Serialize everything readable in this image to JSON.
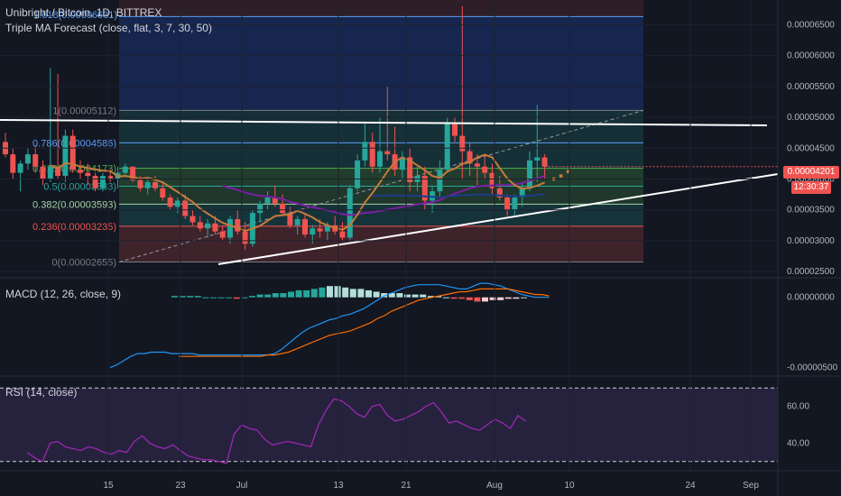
{
  "header": {
    "symbol": "Unibright / Bitcoin, 1D, BITTREX",
    "indicator": "Triple MA Forecast (close, flat, 3, 7, 30, 50)"
  },
  "panes": {
    "macd_title": "MACD (12, 26, close, 9)",
    "rsi_title": "RSI (14, close)"
  },
  "price_tags": {
    "last_price": "0.00004201",
    "countdown": "12:30:37"
  },
  "colors": {
    "background": "#131722",
    "up": "#26a69a",
    "down": "#ef5350",
    "price_line": "#ef5350",
    "trendline": "#ffffff"
  },
  "chart_data": [
    {
      "type": "candlestick",
      "title": "Unibright / Bitcoin, 1D, BITTREX",
      "x_ticks": [
        "15",
        "23",
        "Jul",
        "13",
        "21",
        "Aug",
        "10",
        "24",
        "Sep"
      ],
      "y_ticks": [
        "0.00006500",
        "0.00006000",
        "0.00005500",
        "0.00005000",
        "0.00004500",
        "0.00004000",
        "0.00003500",
        "0.00003000",
        "0.00002500"
      ],
      "ylim": [
        2.4e-05,
        6.9e-05
      ],
      "fib_levels": [
        {
          "label": "1(0.00005112)",
          "value": 5.112e-05
        },
        {
          "label": "0.786(0.00004586)",
          "value": 4.586e-05
        },
        {
          "label": "0.618(0.00004173)",
          "value": 4.173e-05
        },
        {
          "label": "0.5(0.00003883)",
          "value": 3.883e-05
        },
        {
          "label": "0.382(0.00003593)",
          "value": 3.593e-05
        },
        {
          "label": "0.236(0.00003235)",
          "value": 3.235e-05
        },
        {
          "label": "0(0.00002655)",
          "value": 2.655e-05
        }
      ],
      "fib_partial_label": "1.618(0.00006631)",
      "last_price": 4.201e-05,
      "candles": [
        [
          4.6e-05,
          4.75e-05,
          4.35e-05,
          4.4e-05
        ],
        [
          4.4e-05,
          4.5e-05,
          4e-05,
          4.1e-05
        ],
        [
          4.1e-05,
          4.3e-05,
          3.8e-05,
          4.25e-05
        ],
        [
          4.25e-05,
          4.5e-05,
          4.15e-05,
          4.4e-05
        ],
        [
          4.4e-05,
          4.55e-05,
          4.1e-05,
          4.2e-05
        ],
        [
          4.2e-05,
          4.3e-05,
          3.9e-05,
          4e-05
        ],
        [
          4e-05,
          5.8e-05,
          3.95e-05,
          4.2e-05
        ],
        [
          4.2e-05,
          5.7e-05,
          4e-05,
          4.05e-05
        ],
        [
          4.05e-05,
          4.8e-05,
          3.95e-05,
          4.7e-05
        ],
        [
          4.7e-05,
          4.8e-05,
          4.1e-05,
          4.15e-05
        ],
        [
          4.15e-05,
          4.3e-05,
          4e-05,
          4.1e-05
        ],
        [
          4.1e-05,
          4.25e-05,
          3.9e-05,
          4.05e-05
        ],
        [
          4.05e-05,
          4.1e-05,
          3.8e-05,
          3.85e-05
        ],
        [
          3.85e-05,
          4.1e-05,
          3.8e-05,
          4.05e-05
        ],
        [
          4.05e-05,
          4.15e-05,
          3.95e-05,
          4e-05
        ],
        [
          4e-05,
          4.2e-05,
          3.85e-05,
          4.1e-05
        ],
        [
          4.1e-05,
          4.25e-05,
          4.05e-05,
          4.2e-05
        ],
        [
          4.2e-05,
          4.2e-05,
          3.95e-05,
          3.98e-05
        ],
        [
          3.98e-05,
          4.05e-05,
          3.8e-05,
          3.85e-05
        ],
        [
          3.85e-05,
          4e-05,
          3.75e-05,
          3.95e-05
        ],
        [
          3.95e-05,
          4.05e-05,
          3.8e-05,
          3.85e-05
        ],
        [
          3.85e-05,
          3.95e-05,
          3.65e-05,
          3.7e-05
        ],
        [
          3.7e-05,
          3.75e-05,
          3.5e-05,
          3.55e-05
        ],
        [
          3.55e-05,
          3.7e-05,
          3.45e-05,
          3.65e-05
        ],
        [
          3.65e-05,
          3.75e-05,
          3.35e-05,
          3.4e-05
        ],
        [
          3.4e-05,
          3.5e-05,
          3.25e-05,
          3.3e-05
        ],
        [
          3.3e-05,
          3.4e-05,
          3.15e-05,
          3.2e-05
        ],
        [
          3.2e-05,
          3.35e-05,
          3.05e-05,
          3.28e-05
        ],
        [
          3.28e-05,
          3.4e-05,
          3.1e-05,
          3.15e-05
        ],
        [
          3.15e-05,
          3.25e-05,
          3e-05,
          3.05e-05
        ],
        [
          3.05e-05,
          3.4e-05,
          2.95e-05,
          3.35e-05
        ],
        [
          3.35e-05,
          3.5e-05,
          3.1e-05,
          3.15e-05
        ],
        [
          3.15e-05,
          3.3e-05,
          2.85e-05,
          2.95e-05
        ],
        [
          2.95e-05,
          3.5e-05,
          2.9e-05,
          3.45e-05
        ],
        [
          3.45e-05,
          3.65e-05,
          3.3e-05,
          3.6e-05
        ],
        [
          3.6e-05,
          3.8e-05,
          3.5e-05,
          3.7e-05
        ],
        [
          3.7e-05,
          3.9e-05,
          3.55e-05,
          3.6e-05
        ],
        [
          3.6e-05,
          3.75e-05,
          3.4e-05,
          3.45e-05
        ],
        [
          3.45e-05,
          3.55e-05,
          3.2e-05,
          3.25e-05
        ],
        [
          3.25e-05,
          3.4e-05,
          3.1e-05,
          3.35e-05
        ],
        [
          3.35e-05,
          3.45e-05,
          3.05e-05,
          3.1e-05
        ],
        [
          3.1e-05,
          3.25e-05,
          2.95e-05,
          3.2e-05
        ],
        [
          3.2e-05,
          3.35e-05,
          3.05e-05,
          3.15e-05
        ],
        [
          3.15e-05,
          3.3e-05,
          3e-05,
          3.25e-05
        ],
        [
          3.25e-05,
          3.4e-05,
          3.1e-05,
          3.15e-05
        ],
        [
          3.15e-05,
          3.3e-05,
          3e-05,
          3.05e-05
        ],
        [
          3.05e-05,
          3.9e-05,
          3e-05,
          3.85e-05
        ],
        [
          3.85e-05,
          4.4e-05,
          3.8e-05,
          4.3e-05
        ],
        [
          4.3e-05,
          4.9e-05,
          4.2e-05,
          4.6e-05
        ],
        [
          4.6e-05,
          4.75e-05,
          4.1e-05,
          4.2e-05
        ],
        [
          4.2e-05,
          5e-05,
          4.1e-05,
          4.45e-05
        ],
        [
          4.45e-05,
          5.5e-05,
          4.3e-05,
          4.4e-05
        ],
        [
          4.4e-05,
          4.85e-05,
          4.05e-05,
          4.15e-05
        ],
        [
          4.15e-05,
          4.45e-05,
          4e-05,
          4.35e-05
        ],
        [
          4.35e-05,
          4.5e-05,
          3.8e-05,
          3.95e-05
        ],
        [
          3.95e-05,
          4.2e-05,
          3.8e-05,
          4.05e-05
        ],
        [
          4.05e-05,
          4.2e-05,
          3.5e-05,
          3.65e-05
        ],
        [
          3.65e-05,
          3.9e-05,
          3.45e-05,
          3.8e-05
        ],
        [
          3.8e-05,
          4.3e-05,
          3.7e-05,
          4.15e-05
        ],
        [
          4.15e-05,
          5e-05,
          4.1e-05,
          4.9e-05
        ],
        [
          4.9e-05,
          5e-05,
          4.6e-05,
          4.7e-05
        ],
        [
          4.7e-05,
          6.8e-05,
          4e-05,
          4.45e-05
        ],
        [
          4.45e-05,
          4.6e-05,
          4.05e-05,
          4.25e-05
        ],
        [
          4.25e-05,
          4.4e-05,
          3.9e-05,
          4.2e-05
        ],
        [
          4.2e-05,
          4.4e-05,
          4e-05,
          4.1e-05
        ],
        [
          4.1e-05,
          4.25e-05,
          3.75e-05,
          3.85e-05
        ],
        [
          3.85e-05,
          4.05e-05,
          3.65e-05,
          3.7e-05
        ],
        [
          3.7e-05,
          3.75e-05,
          3.4e-05,
          3.5e-05
        ],
        [
          3.5e-05,
          3.75e-05,
          3.4e-05,
          3.7e-05
        ],
        [
          3.7e-05,
          3.95e-05,
          3.55e-05,
          3.85e-05
        ],
        [
          3.85e-05,
          4.45e-05,
          3.8e-05,
          4.3e-05
        ],
        [
          4.3e-05,
          5.2e-05,
          3.95e-05,
          4.35e-05
        ],
        [
          4.35e-05,
          4.4e-05,
          4e-05,
          4.201e-05
        ]
      ],
      "projected_points": [
        4e-05,
        4.05e-05,
        4.12e-05
      ]
    },
    {
      "type": "line",
      "title": "MACD (12, 26, close, 9)",
      "y_ticks": [
        "0.00000000",
        "-0.00000500"
      ],
      "ylim": [
        -5.6e-06,
        1.2e-06
      ],
      "macd": [
        -5e-06,
        -4.8e-06,
        -4.5e-06,
        -4.2e-06,
        -4e-06,
        -4e-06,
        -3.9e-06,
        -3.9e-06,
        -3.9e-06,
        -4e-06,
        -4e-06,
        -4e-06,
        -4e-06,
        -4.1e-06,
        -4.1e-06,
        -4.1e-06,
        -4.1e-06,
        -4.1e-06,
        -4.1e-06,
        -4.1e-06,
        -4.1e-06,
        -4.1e-06,
        -4.1e-06,
        -4.1e-06,
        -4e-06,
        -3.7e-06,
        -3.3e-06,
        -2.9e-06,
        -2.5e-06,
        -2.2e-06,
        -2e-06,
        -1.8e-06,
        -1.6e-06,
        -1.5e-06,
        -1.3e-06,
        -1.2e-06,
        -1e-06,
        -8e-07,
        -5e-07,
        -2e-07,
        1e-07,
        3e-07,
        5e-07,
        7e-07,
        8e-07,
        9e-07,
        9e-07,
        9e-07,
        9e-07,
        8e-07,
        7e-07,
        6e-07,
        6e-07,
        8e-07,
        1e-06,
        1e-06,
        9e-07,
        8e-07,
        6e-07,
        4e-07,
        2e-07,
        1e-07,
        0.0,
        0.0,
        0.0
      ],
      "signal": [
        null,
        null,
        null,
        null,
        null,
        null,
        null,
        null,
        null,
        null,
        -4.2e-06,
        -4.2e-06,
        -4.2e-06,
        -4.2e-06,
        -4.2e-06,
        -4.2e-06,
        -4.2e-06,
        -4.2e-06,
        -4.2e-06,
        -4.2e-06,
        -4.2e-06,
        -4.2e-06,
        -4.2e-06,
        -4.1e-06,
        -4.1e-06,
        -4e-06,
        -3.9e-06,
        -3.7e-06,
        -3.5e-06,
        -3.3e-06,
        -3.1e-06,
        -2.9e-06,
        -2.7e-06,
        -2.6e-06,
        -2.5e-06,
        -2.4e-06,
        -2.2e-06,
        -2e-06,
        -1.8e-06,
        -1.5e-06,
        -1.3e-06,
        -1e-06,
        -8e-07,
        -6e-07,
        -4e-07,
        -2e-07,
        -1e-07,
        0.0,
        1e-07,
        2e-07,
        3e-07,
        4e-07,
        4e-07,
        5e-07,
        6e-07,
        6e-07,
        6e-07,
        6e-07,
        6e-07,
        5e-07,
        4e-07,
        3e-07,
        2e-07,
        2e-07,
        1e-07
      ],
      "histogram": [
        1e-07,
        1e-07,
        1e-07,
        1e-07,
        0.0,
        0.0,
        0.0,
        0.0,
        -1e-07,
        0.0,
        1e-07,
        2e-07,
        2e-07,
        3e-07,
        3e-07,
        4e-07,
        5e-07,
        5e-07,
        6e-07,
        7e-07,
        8e-07,
        8e-07,
        7e-07,
        6e-07,
        6e-07,
        5e-07,
        4e-07,
        3e-07,
        3e-07,
        3e-07,
        2e-07,
        2e-07,
        2e-07,
        1e-07,
        1e-07,
        0.0,
        -1e-07,
        -1e-07,
        -2e-07,
        -3e-07,
        -3e-07,
        -2e-07,
        -2e-07,
        -1e-07,
        -1e-07,
        0.0
      ]
    },
    {
      "type": "line",
      "title": "RSI (14, close)",
      "y_ticks": [
        "60.00",
        "40.00"
      ],
      "ylim": [
        25,
        75
      ],
      "bands": [
        70,
        30
      ],
      "values": [
        35,
        32,
        30,
        40,
        41,
        38,
        37,
        36,
        38,
        37,
        35,
        34,
        36,
        35,
        41,
        44,
        40,
        38,
        37,
        39,
        36,
        33,
        32,
        31,
        31,
        30,
        29,
        45,
        50,
        48,
        47,
        42,
        39,
        40,
        41,
        40,
        39,
        38,
        50,
        58,
        64,
        63,
        60,
        56,
        54,
        60,
        61,
        55,
        52,
        53,
        55,
        57,
        60,
        62,
        57,
        51,
        52,
        50,
        48,
        47,
        50,
        53,
        51,
        48,
        55,
        52
      ]
    }
  ]
}
